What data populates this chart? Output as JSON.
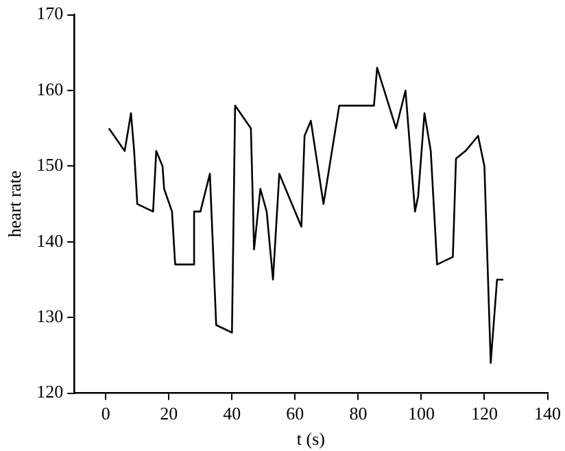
{
  "chart_data": {
    "type": "line",
    "xlabel": "t (s)",
    "ylabel": "heart rate",
    "x": [
      1,
      6,
      8,
      9,
      10,
      15,
      16,
      18,
      18.5,
      21,
      22,
      28,
      28,
      30,
      33,
      35,
      40,
      41,
      46,
      47,
      49,
      51,
      53,
      55,
      62,
      63,
      65,
      69,
      74,
      85,
      86,
      92,
      95,
      98,
      99,
      101,
      103,
      105,
      110,
      111,
      114,
      118,
      120,
      121,
      122,
      124,
      126
    ],
    "series": [
      {
        "color": "#000000",
        "values": [
          155,
          152,
          157,
          152,
          145,
          144,
          152,
          150,
          147,
          144,
          137,
          137,
          144,
          144,
          149,
          129,
          128,
          158,
          155,
          139,
          147,
          144,
          135,
          149,
          142,
          154,
          156,
          145,
          158,
          158,
          163,
          155,
          160,
          144,
          146,
          157,
          152,
          137,
          138,
          151,
          152,
          154,
          150,
          137,
          124,
          135,
          135
        ]
      }
    ],
    "xlim": [
      -10,
      140
    ],
    "xticks": [
      0,
      20,
      40,
      60,
      80,
      100,
      120,
      140
    ],
    "ylim": [
      120,
      170
    ],
    "yticks": [
      120,
      130,
      140,
      150,
      160,
      170
    ],
    "grid": false,
    "legend": false,
    "marker": "none",
    "line_style": "solid"
  }
}
